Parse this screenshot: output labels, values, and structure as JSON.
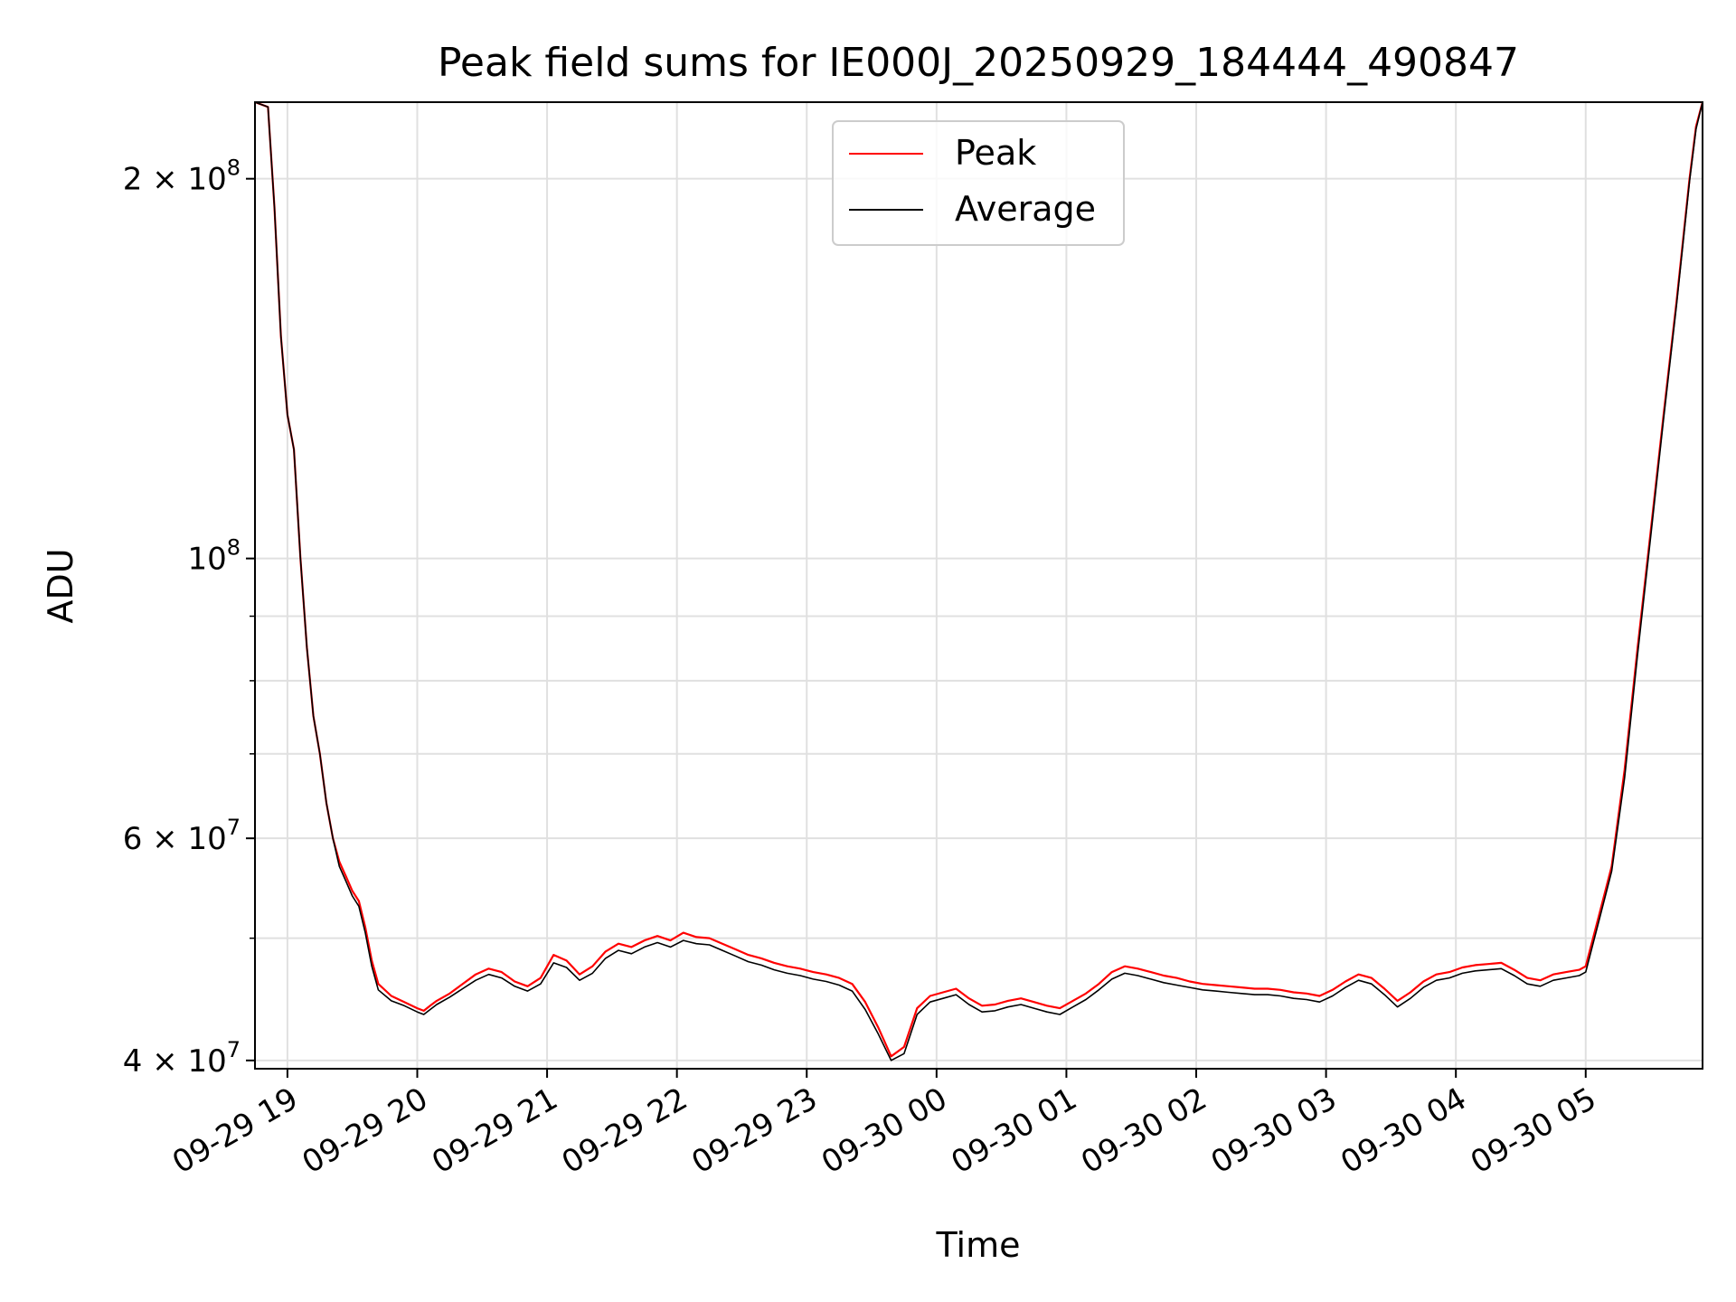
{
  "chart_data": {
    "type": "line",
    "title": "Peak field sums for IE000J_20250929_184444_490847",
    "xlabel": "Time",
    "ylabel": "ADU",
    "y_scale": "log",
    "ylim": [
      39400000,
      230000000
    ],
    "xlim": [
      "09-29 18:45",
      "09-30 05:54"
    ],
    "grid": true,
    "legend_position": "upper center",
    "x_ticks": [
      {
        "t": "09-29 19:00",
        "label": "09-29 19"
      },
      {
        "t": "09-29 20:00",
        "label": "09-29 20"
      },
      {
        "t": "09-29 21:00",
        "label": "09-29 21"
      },
      {
        "t": "09-29 22:00",
        "label": "09-29 22"
      },
      {
        "t": "09-29 23:00",
        "label": "09-29 23"
      },
      {
        "t": "09-30 00:00",
        "label": "09-30 00"
      },
      {
        "t": "09-30 01:00",
        "label": "09-30 01"
      },
      {
        "t": "09-30 02:00",
        "label": "09-30 02"
      },
      {
        "t": "09-30 03:00",
        "label": "09-30 03"
      },
      {
        "t": "09-30 04:00",
        "label": "09-30 04"
      },
      {
        "t": "09-30 05:00",
        "label": "09-30 05"
      }
    ],
    "y_ticks": [
      {
        "value": 40000000,
        "mantissa": "4",
        "exp": "7"
      },
      {
        "value": 60000000,
        "mantissa": "6",
        "exp": "7"
      },
      {
        "value": 100000000,
        "mantissa": "",
        "exp": "8"
      },
      {
        "value": 200000000,
        "mantissa": "2",
        "exp": "8"
      }
    ],
    "y_minor_ticks": [
      50000000,
      70000000,
      80000000,
      90000000
    ],
    "series": [
      {
        "name": "Peak",
        "color": "#ff0000",
        "x": [
          "09-29 18:45",
          "09-29 18:51",
          "09-29 18:54",
          "09-29 18:57",
          "09-29 19:00",
          "09-29 19:03",
          "09-29 19:06",
          "09-29 19:09",
          "09-29 19:12",
          "09-29 19:15",
          "09-29 19:18",
          "09-29 19:21",
          "09-29 19:24",
          "09-29 19:27",
          "09-29 19:30",
          "09-29 19:33",
          "09-29 19:36",
          "09-29 19:39",
          "09-29 19:42",
          "09-29 19:48",
          "09-29 19:54",
          "09-29 20:00",
          "09-29 20:03",
          "09-29 20:06",
          "09-29 20:09",
          "09-29 20:15",
          "09-29 20:21",
          "09-29 20:27",
          "09-29 20:33",
          "09-29 20:39",
          "09-29 20:45",
          "09-29 20:51",
          "09-29 20:57",
          "09-29 21:03",
          "09-29 21:09",
          "09-29 21:15",
          "09-29 21:21",
          "09-29 21:27",
          "09-29 21:33",
          "09-29 21:39",
          "09-29 21:45",
          "09-29 21:51",
          "09-29 21:57",
          "09-29 22:03",
          "09-29 22:09",
          "09-29 22:15",
          "09-29 22:21",
          "09-29 22:27",
          "09-29 22:33",
          "09-29 22:39",
          "09-29 22:45",
          "09-29 22:51",
          "09-29 22:57",
          "09-29 23:03",
          "09-29 23:09",
          "09-29 23:15",
          "09-29 23:21",
          "09-29 23:27",
          "09-29 23:33",
          "09-29 23:39",
          "09-29 23:45",
          "09-29 23:51",
          "09-29 23:57",
          "09-30 00:03",
          "09-30 00:09",
          "09-30 00:15",
          "09-30 00:21",
          "09-30 00:27",
          "09-30 00:33",
          "09-30 00:39",
          "09-30 00:45",
          "09-30 00:51",
          "09-30 00:57",
          "09-30 01:03",
          "09-30 01:09",
          "09-30 01:15",
          "09-30 01:21",
          "09-30 01:27",
          "09-30 01:33",
          "09-30 01:39",
          "09-30 01:45",
          "09-30 01:51",
          "09-30 01:57",
          "09-30 02:03",
          "09-30 02:09",
          "09-30 02:15",
          "09-30 02:21",
          "09-30 02:27",
          "09-30 02:33",
          "09-30 02:39",
          "09-30 02:45",
          "09-30 02:51",
          "09-30 02:57",
          "09-30 03:03",
          "09-30 03:09",
          "09-30 03:15",
          "09-30 03:21",
          "09-30 03:27",
          "09-30 03:33",
          "09-30 03:39",
          "09-30 03:45",
          "09-30 03:51",
          "09-30 03:57",
          "09-30 04:03",
          "09-30 04:09",
          "09-30 04:15",
          "09-30 04:21",
          "09-30 04:27",
          "09-30 04:33",
          "09-30 04:39",
          "09-30 04:45",
          "09-30 04:51",
          "09-30 04:57",
          "09-30 05:00",
          "09-30 05:06",
          "09-30 05:12",
          "09-30 05:18",
          "09-30 05:24",
          "09-30 05:30",
          "09-30 05:36",
          "09-30 05:42",
          "09-30 05:48",
          "09-30 05:51",
          "09-30 05:54"
        ],
        "y": [
          230000000,
          228000000,
          190000000,
          150000000,
          130000000,
          122000000,
          100000000,
          85000000,
          75000000,
          70000000,
          64000000,
          60000000,
          57500000,
          56000000,
          54500000,
          53500000,
          51000000,
          48000000,
          46000000,
          45000000,
          44500000,
          44000000,
          43800000,
          44200000,
          44600000,
          45200000,
          46000000,
          46800000,
          47300000,
          47000000,
          46200000,
          45800000,
          46500000,
          48500000,
          48000000,
          46800000,
          47500000,
          48800000,
          49500000,
          49200000,
          49800000,
          50200000,
          49800000,
          50500000,
          50100000,
          50000000,
          49500000,
          49000000,
          48500000,
          48200000,
          47800000,
          47500000,
          47300000,
          47000000,
          46800000,
          46500000,
          46000000,
          44500000,
          42500000,
          40300000,
          41000000,
          44000000,
          45000000,
          45300000,
          45600000,
          44800000,
          44200000,
          44300000,
          44600000,
          44800000,
          44500000,
          44200000,
          44000000,
          44600000,
          45200000,
          46000000,
          47000000,
          47500000,
          47300000,
          47000000,
          46700000,
          46500000,
          46200000,
          46000000,
          45900000,
          45800000,
          45700000,
          45600000,
          45600000,
          45500000,
          45300000,
          45200000,
          45000000,
          45500000,
          46200000,
          46800000,
          46500000,
          45600000,
          44600000,
          45300000,
          46200000,
          46800000,
          47000000,
          47400000,
          47600000,
          47700000,
          47800000,
          47200000,
          46500000,
          46300000,
          46800000,
          47000000,
          47200000,
          47500000,
          52000000,
          57000000,
          68000000,
          85000000,
          105000000,
          130000000,
          160000000,
          200000000,
          220000000,
          230000000
        ]
      },
      {
        "name": "Average",
        "color": "#000000",
        "x": [
          "09-29 18:45",
          "09-29 18:51",
          "09-29 18:54",
          "09-29 18:57",
          "09-29 19:00",
          "09-29 19:03",
          "09-29 19:06",
          "09-29 19:09",
          "09-29 19:12",
          "09-29 19:15",
          "09-29 19:18",
          "09-29 19:21",
          "09-29 19:24",
          "09-29 19:27",
          "09-29 19:30",
          "09-29 19:33",
          "09-29 19:36",
          "09-29 19:39",
          "09-29 19:42",
          "09-29 19:48",
          "09-29 19:54",
          "09-29 20:00",
          "09-29 20:03",
          "09-29 20:06",
          "09-29 20:09",
          "09-29 20:15",
          "09-29 20:21",
          "09-29 20:27",
          "09-29 20:33",
          "09-29 20:39",
          "09-29 20:45",
          "09-29 20:51",
          "09-29 20:57",
          "09-29 21:03",
          "09-29 21:09",
          "09-29 21:15",
          "09-29 21:21",
          "09-29 21:27",
          "09-29 21:33",
          "09-29 21:39",
          "09-29 21:45",
          "09-29 21:51",
          "09-29 21:57",
          "09-29 22:03",
          "09-29 22:09",
          "09-29 22:15",
          "09-29 22:21",
          "09-29 22:27",
          "09-29 22:33",
          "09-29 22:39",
          "09-29 22:45",
          "09-29 22:51",
          "09-29 22:57",
          "09-29 23:03",
          "09-29 23:09",
          "09-29 23:15",
          "09-29 23:21",
          "09-29 23:27",
          "09-29 23:33",
          "09-29 23:39",
          "09-29 23:45",
          "09-29 23:51",
          "09-29 23:57",
          "09-30 00:03",
          "09-30 00:09",
          "09-30 00:15",
          "09-30 00:21",
          "09-30 00:27",
          "09-30 00:33",
          "09-30 00:39",
          "09-30 00:45",
          "09-30 00:51",
          "09-30 00:57",
          "09-30 01:03",
          "09-30 01:09",
          "09-30 01:15",
          "09-30 01:21",
          "09-30 01:27",
          "09-30 01:33",
          "09-30 01:39",
          "09-30 01:45",
          "09-30 01:51",
          "09-30 01:57",
          "09-30 02:03",
          "09-30 02:09",
          "09-30 02:15",
          "09-30 02:21",
          "09-30 02:27",
          "09-30 02:33",
          "09-30 02:39",
          "09-30 02:45",
          "09-30 02:51",
          "09-30 02:57",
          "09-30 03:03",
          "09-30 03:09",
          "09-30 03:15",
          "09-30 03:21",
          "09-30 03:27",
          "09-30 03:33",
          "09-30 03:39",
          "09-30 03:45",
          "09-30 03:51",
          "09-30 03:57",
          "09-30 04:03",
          "09-30 04:09",
          "09-30 04:15",
          "09-30 04:21",
          "09-30 04:27",
          "09-30 04:33",
          "09-30 04:39",
          "09-30 04:45",
          "09-30 04:51",
          "09-30 04:57",
          "09-30 05:00",
          "09-30 05:06",
          "09-30 05:12",
          "09-30 05:18",
          "09-30 05:24",
          "09-30 05:30",
          "09-30 05:36",
          "09-30 05:42",
          "09-30 05:48",
          "09-30 05:51",
          "09-30 05:54"
        ],
        "y": [
          230000000,
          228000000,
          190000000,
          150000000,
          130000000,
          122000000,
          100000000,
          85000000,
          75000000,
          70000000,
          64000000,
          60000000,
          57000000,
          55500000,
          54000000,
          53000000,
          50500000,
          47500000,
          45500000,
          44600000,
          44200000,
          43700000,
          43500000,
          43900000,
          44300000,
          44900000,
          45600000,
          46300000,
          46800000,
          46500000,
          45800000,
          45400000,
          46000000,
          47800000,
          47400000,
          46300000,
          46900000,
          48200000,
          48900000,
          48600000,
          49200000,
          49600000,
          49200000,
          49800000,
          49500000,
          49400000,
          48900000,
          48400000,
          47900000,
          47600000,
          47200000,
          46900000,
          46700000,
          46400000,
          46200000,
          45900000,
          45400000,
          43900000,
          42000000,
          40000000,
          40500000,
          43500000,
          44500000,
          44800000,
          45100000,
          44300000,
          43700000,
          43800000,
          44100000,
          44300000,
          44000000,
          43700000,
          43500000,
          44100000,
          44700000,
          45500000,
          46400000,
          46900000,
          46700000,
          46400000,
          46100000,
          45900000,
          45700000,
          45500000,
          45400000,
          45300000,
          45200000,
          45100000,
          45100000,
          45000000,
          44800000,
          44700000,
          44500000,
          45000000,
          45700000,
          46300000,
          46000000,
          45100000,
          44100000,
          44800000,
          45700000,
          46300000,
          46500000,
          46900000,
          47100000,
          47200000,
          47300000,
          46700000,
          46000000,
          45800000,
          46300000,
          46500000,
          46700000,
          47000000,
          51500000,
          56500000,
          67000000,
          84000000,
          104000000,
          129000000,
          159000000,
          199000000,
          219000000,
          230000000
        ]
      }
    ]
  }
}
